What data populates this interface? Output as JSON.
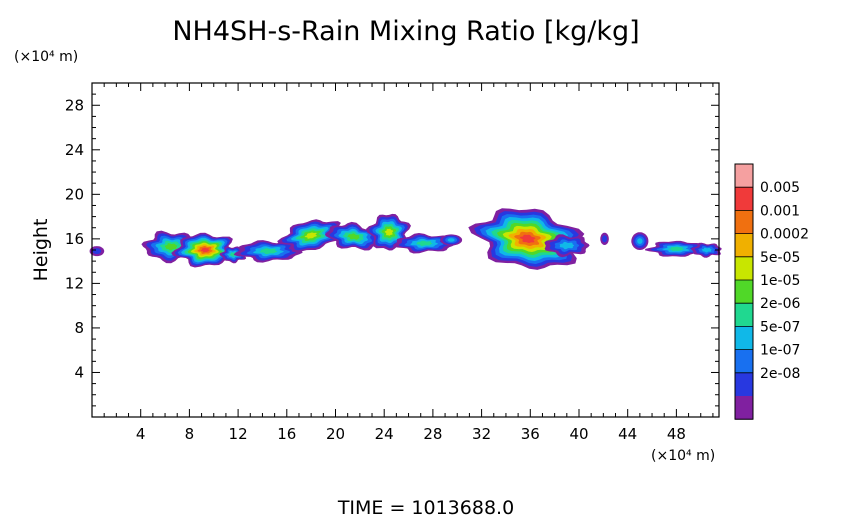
{
  "chart_data": {
    "type": "heatmap",
    "title": "NH4SH-s-Rain Mixing Ratio [kg/kg]",
    "ylabel": "Height",
    "xlabel": "",
    "x_unit": "(×10⁴ m)",
    "y_unit": "(×10⁴ m)",
    "xlim": [
      0,
      51.5
    ],
    "ylim": [
      0,
      30
    ],
    "x_ticks": [
      4,
      8,
      12,
      16,
      20,
      24,
      28,
      32,
      36,
      40,
      44,
      48
    ],
    "y_ticks": [
      4,
      8,
      12,
      16,
      20,
      24,
      28
    ],
    "colorbar": {
      "labels": [
        "0.005",
        "0.001",
        "0.0002",
        "5e-05",
        "1e-05",
        "2e-06",
        "5e-07",
        "1e-07",
        "2e-08"
      ],
      "colors": [
        "#f5a0a0",
        "#f03a3a",
        "#f07010",
        "#f0b000",
        "#c8e600",
        "#50d828",
        "#20d890",
        "#10b8e8",
        "#1870f0",
        "#2838e0",
        "#8020a0"
      ]
    },
    "regions": [
      {
        "x_range": [
          0,
          1
        ],
        "y_range": [
          14.5,
          15.5
        ],
        "peak_color_index": 9
      },
      {
        "x_range": [
          4.5,
          12.5
        ],
        "y_range": [
          13.5,
          17
        ],
        "peak": {
          "x": 9.5,
          "y": 14.5
        },
        "peak_color_index": 1
      },
      {
        "x_range": [
          11.5,
          30.5
        ],
        "y_range": [
          13.8,
          18.2
        ],
        "peak_color_index": 6
      },
      {
        "x_range": [
          32,
          41
        ],
        "y_range": [
          13.5,
          19
        ],
        "peak": {
          "x": 35.5,
          "y": 15.5
        },
        "peak_color_index": 1
      },
      {
        "x_range": [
          41.8,
          42.5
        ],
        "y_range": [
          15.5,
          16.5
        ],
        "peak_color_index": 9
      },
      {
        "x_range": [
          44.5,
          51.5
        ],
        "y_range": [
          14.2,
          17
        ],
        "peak_color_index": 6
      }
    ],
    "footer": "TIME = 1013688.0"
  }
}
